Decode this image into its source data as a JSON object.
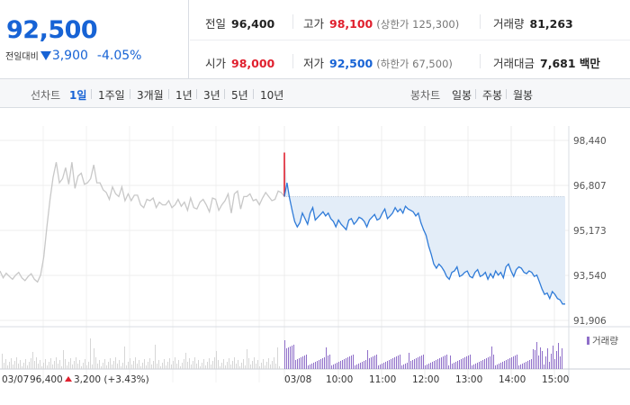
{
  "quote": {
    "price": "92,500",
    "diff_label": "전일대비",
    "diff_value": "3,900",
    "diff_pct": "-4.05%"
  },
  "stats": {
    "prev_close": {
      "label": "전일",
      "value": "96,400"
    },
    "high": {
      "label": "고가",
      "value": "98,100",
      "sub": "(상한가 125,300)"
    },
    "volume": {
      "label": "거래량",
      "value": "81,263"
    },
    "open": {
      "label": "시가",
      "value": "98,000"
    },
    "low": {
      "label": "저가",
      "value": "92,500",
      "sub": "(하한가 67,500)"
    },
    "trade_amount": {
      "label": "거래대금",
      "value": "7,681 백만"
    }
  },
  "periods": {
    "line_label": "선차트",
    "line_items": [
      "1일",
      "1주일",
      "3개월",
      "1년",
      "3년",
      "5년",
      "10년"
    ],
    "active": "1일",
    "candle_label": "봉차트",
    "candle_items": [
      "일봉",
      "주봉",
      "월봉"
    ]
  },
  "colors": {
    "up": "#e0202e",
    "down": "#1763d5",
    "prev_day_line": "#c8c8c8",
    "area_fill": "#e3edf8",
    "volume_bar": "#8f6fc9"
  },
  "chart_data": {
    "type": "line",
    "ylim": [
      91906,
      98440
    ],
    "y_ticks": [
      "98,440",
      "96,807",
      "95,173",
      "93,540",
      "91,906"
    ],
    "y_tick_values": [
      98440,
      96807,
      95173,
      93540,
      91906
    ],
    "x_ticks": [
      "03/08",
      "10:00",
      "11:00",
      "12:00",
      "13:00",
      "14:00",
      "15:00"
    ],
    "reference_price": 96400,
    "prev_day": {
      "date": "03/07",
      "close": "96,400",
      "change": "3,200",
      "change_pct": "(+3.43%)",
      "values": [
        93700,
        93450,
        93620,
        93500,
        93400,
        93550,
        93650,
        93450,
        93350,
        93500,
        93600,
        93400,
        93300,
        93550,
        94200,
        95300,
        96300,
        97100,
        97650,
        96900,
        97050,
        97450,
        96850,
        97650,
        96700,
        97150,
        97250,
        96850,
        96900,
        97050,
        97550,
        96900,
        96900,
        96650,
        96550,
        96300,
        96750,
        96500,
        96400,
        96750,
        96250,
        96500,
        96250,
        96450,
        96450,
        96100,
        96000,
        96300,
        96250,
        96350,
        96000,
        96200,
        96100,
        96100,
        96250,
        96000,
        96100,
        96300,
        96050,
        96200,
        95900,
        96350,
        96000,
        95950,
        96200,
        96300,
        96100,
        95850,
        96350,
        96300,
        95900,
        96100,
        96250,
        96500,
        95800,
        96500,
        96600,
        95950,
        96400,
        96400,
        96500,
        96250,
        96300,
        96100,
        96350,
        96550,
        96400,
        96250,
        96300,
        96600,
        96550,
        96400
      ]
    },
    "today": {
      "values": [
        98000,
        96900,
        96350,
        95900,
        95500,
        95300,
        95450,
        95800,
        95600,
        95400,
        95800,
        96000,
        95550,
        95650,
        95750,
        95850,
        95700,
        95800,
        95600,
        95500,
        95300,
        95550,
        95400,
        95300,
        95200,
        95550,
        95600,
        95400,
        95500,
        95650,
        95600,
        95500,
        95300,
        95550,
        95650,
        95750,
        95550,
        95600,
        95800,
        95950,
        95600,
        95700,
        95800,
        96000,
        95850,
        95950,
        95800,
        96050,
        95950,
        95900,
        95850,
        95700,
        95800,
        95450,
        95200,
        95000,
        94600,
        94300,
        93950,
        93800,
        93950,
        93850,
        93700,
        93500,
        93400,
        93650,
        93700,
        93850,
        93500,
        93550,
        93650,
        93700,
        93500,
        93450,
        93650,
        93750,
        93500,
        93550,
        93650,
        93400,
        93600,
        93450,
        93700,
        93550,
        93650,
        93450,
        93850,
        93950,
        93700,
        93500,
        93750,
        93850,
        93800,
        93650,
        93600,
        93700,
        93650,
        93500,
        93550,
        93300,
        93050,
        92850,
        92900,
        92700,
        92950,
        92850,
        92700,
        92650,
        92500,
        92500
      ]
    },
    "volume_label": "거래량"
  }
}
